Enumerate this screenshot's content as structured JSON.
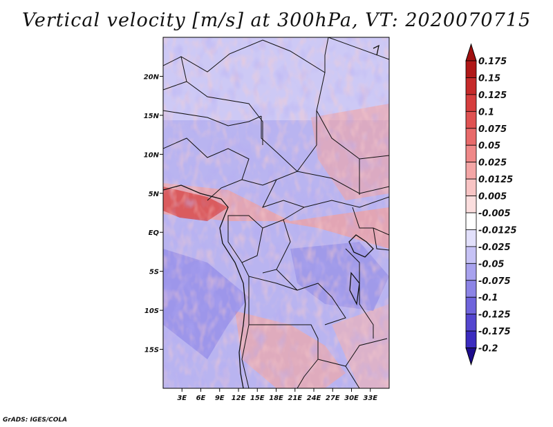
{
  "title": "Vertical velocity [m/s] at 300hPa, VT: 2020070715",
  "credit": "GrADS: IGES/COLA",
  "map": {
    "lon_range": [
      0,
      36
    ],
    "lat_range": [
      -20,
      25
    ],
    "lon_ticks": [
      {
        "value": 3,
        "label": "3E"
      },
      {
        "value": 6,
        "label": "6E"
      },
      {
        "value": 9,
        "label": "9E"
      },
      {
        "value": 12,
        "label": "12E"
      },
      {
        "value": 15,
        "label": "15E"
      },
      {
        "value": 18,
        "label": "18E"
      },
      {
        "value": 21,
        "label": "21E"
      },
      {
        "value": 24,
        "label": "24E"
      },
      {
        "value": 27,
        "label": "27E"
      },
      {
        "value": 30,
        "label": "30E"
      },
      {
        "value": 33,
        "label": "33E"
      }
    ],
    "lat_ticks": [
      {
        "value": 20,
        "label": "20N"
      },
      {
        "value": 15,
        "label": "15N"
      },
      {
        "value": 10,
        "label": "10N"
      },
      {
        "value": 5,
        "label": "5N"
      },
      {
        "value": 0,
        "label": "EQ"
      },
      {
        "value": -5,
        "label": "5S"
      },
      {
        "value": -10,
        "label": "10S"
      },
      {
        "value": -15,
        "label": "15S"
      }
    ]
  },
  "colorbar": {
    "levels": [
      {
        "label": "0.175",
        "color": "#b01818"
      },
      {
        "label": "0.15",
        "color": "#c62a2a"
      },
      {
        "label": "0.125",
        "color": "#d63e3e"
      },
      {
        "label": "0.1",
        "color": "#e05252"
      },
      {
        "label": "0.075",
        "color": "#e86a6a"
      },
      {
        "label": "0.05",
        "color": "#ef8888"
      },
      {
        "label": "0.025",
        "color": "#f4a6a6"
      },
      {
        "label": "0.0125",
        "color": "#f8c4c4"
      },
      {
        "label": "0.005",
        "color": "#fbdede"
      },
      {
        "label": "-0.005",
        "color": "#ffffff"
      },
      {
        "label": "-0.0125",
        "color": "#e2e0fb"
      },
      {
        "label": "-0.025",
        "color": "#c6c2f5"
      },
      {
        "label": "-0.05",
        "color": "#a8a2ee"
      },
      {
        "label": "-0.075",
        "color": "#8c84e6"
      },
      {
        "label": "-0.1",
        "color": "#6f64dc"
      },
      {
        "label": "-0.125",
        "color": "#5446cf"
      },
      {
        "label": "-0.175",
        "color": "#3b2bbf"
      },
      {
        "label": "-0.2",
        "color": "#2a1aa8"
      }
    ],
    "top_color": "#a01010",
    "bottom_color": "#1c0c8c"
  }
}
